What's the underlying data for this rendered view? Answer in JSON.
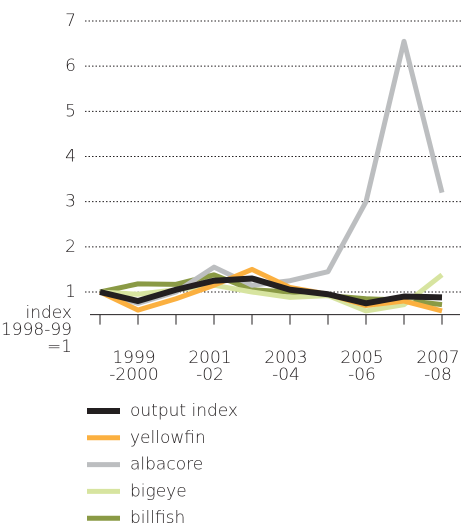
{
  "chart_data": {
    "type": "line",
    "y_label": "index\n1998-99\n=1",
    "categories": [
      null,
      "1999\n-2000",
      null,
      "2001\n-02",
      null,
      "2003\n-04",
      null,
      "2005\n-06",
      null,
      "2007\n-08"
    ],
    "series": [
      {
        "name": "output index",
        "color": "#231f20",
        "values": [
          1.0,
          0.8,
          1.05,
          1.25,
          1.3,
          1.05,
          0.95,
          0.75,
          0.9,
          0.88
        ]
      },
      {
        "name": "yellowfin",
        "color": "#fbb040",
        "values": [
          1.0,
          0.6,
          0.85,
          1.15,
          1.5,
          1.1,
          0.95,
          0.7,
          0.8,
          0.58
        ]
      },
      {
        "name": "albacore",
        "color": "#bcbec0",
        "values": [
          1.0,
          0.75,
          1.0,
          1.55,
          1.15,
          1.25,
          1.45,
          3.0,
          6.55,
          3.2
        ]
      },
      {
        "name": "bigeye",
        "color": "#d7e4a0",
        "values": [
          1.0,
          0.95,
          1.05,
          1.15,
          1.0,
          0.88,
          0.92,
          0.58,
          0.72,
          1.38
        ]
      },
      {
        "name": "billfish",
        "color": "#8a9a45",
        "values": [
          1.0,
          1.18,
          1.17,
          1.38,
          1.05,
          1.0,
          0.92,
          0.85,
          0.82,
          0.72
        ]
      }
    ],
    "ylim": [
      0.5,
      7
    ],
    "yticks": [
      1,
      2,
      3,
      4,
      5,
      6,
      7
    ],
    "grid": true
  }
}
